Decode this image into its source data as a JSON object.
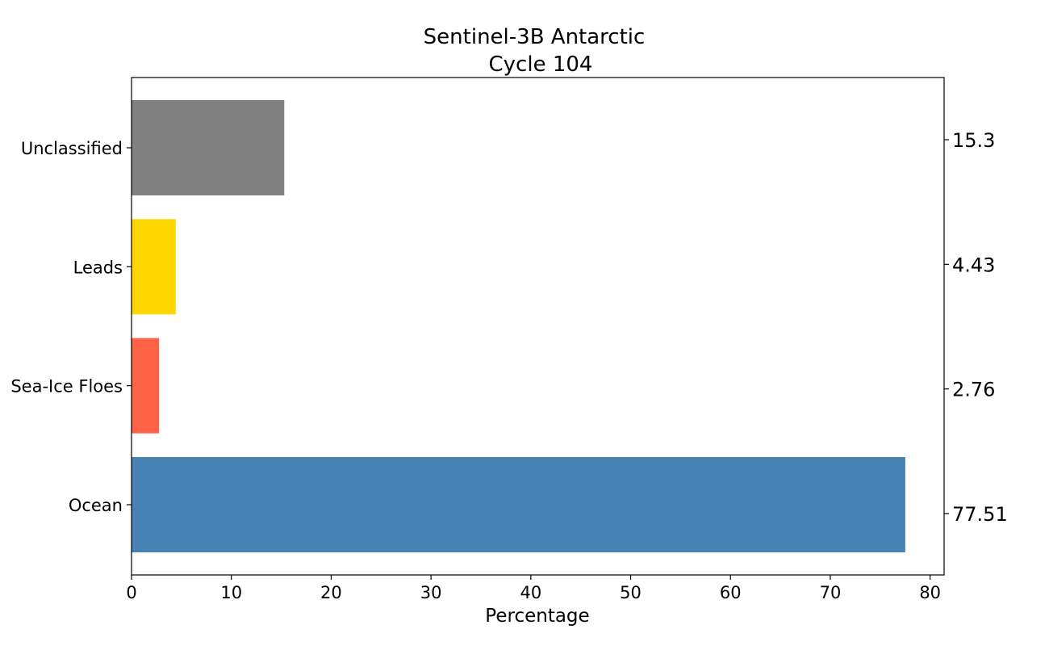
{
  "chart_data": {
    "type": "bar",
    "orientation": "horizontal",
    "title": [
      "Sentinel-3B Antarctic",
      "Cycle 104"
    ],
    "xlabel": "Percentage",
    "ylabel": "",
    "xlim": [
      0,
      81.4
    ],
    "xticks": [
      0,
      10,
      20,
      30,
      40,
      50,
      60,
      70,
      80
    ],
    "categories": [
      "Ocean",
      "Sea-Ice Floes",
      "Leads",
      "Unclassified"
    ],
    "values": [
      77.51,
      2.76,
      4.43,
      15.3
    ],
    "value_labels": [
      "77.51",
      "2.76",
      "4.43",
      "15.3"
    ],
    "colors": [
      "#4682b4",
      "#ff6347",
      "#ffd700",
      "#808080"
    ],
    "grid": false,
    "legend": "none"
  }
}
